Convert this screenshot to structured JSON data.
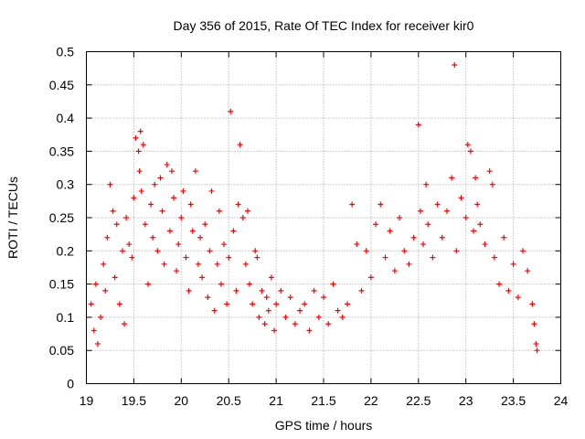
{
  "chart_data": {
    "type": "scatter",
    "title": "Day 356 of 2015, Rate Of TEC Index for receiver kir0",
    "xlabel": "GPS time / hours",
    "ylabel": "ROTI / TECUs",
    "xlim": [
      19,
      24
    ],
    "ylim": [
      0,
      0.5
    ],
    "grid": true,
    "marker": "+",
    "color": "#ff0000",
    "x_ticks": [
      "19",
      "19.5",
      "20",
      "20.5",
      "21",
      "21.5",
      "22",
      "22.5",
      "23",
      "23.5",
      "24"
    ],
    "x_tick_values": [
      19,
      19.5,
      20,
      20.5,
      21,
      21.5,
      22,
      22.5,
      23,
      23.5,
      24
    ],
    "y_ticks": [
      "0",
      "0.05",
      "0.1",
      "0.15",
      "0.2",
      "0.25",
      "0.3",
      "0.35",
      "0.4",
      "0.45",
      "0.5"
    ],
    "y_tick_values": [
      0,
      0.05,
      0.1,
      0.15,
      0.2,
      0.25,
      0.3,
      0.35,
      0.4,
      0.45,
      0.5
    ],
    "series": [
      {
        "name": "ROTI",
        "x": [
          19.05,
          19.08,
          19.1,
          19.12,
          19.15,
          19.18,
          19.2,
          19.22,
          19.25,
          19.28,
          19.3,
          19.32,
          19.35,
          19.38,
          19.4,
          19.42,
          19.45,
          19.48,
          19.5,
          19.52,
          19.55,
          19.56,
          19.57,
          19.58,
          19.6,
          19.62,
          19.65,
          19.68,
          19.7,
          19.72,
          19.75,
          19.78,
          19.8,
          19.82,
          19.85,
          19.88,
          19.9,
          19.92,
          19.95,
          19.97,
          20.0,
          20.02,
          20.05,
          20.08,
          20.1,
          20.12,
          20.15,
          20.18,
          20.2,
          20.22,
          20.25,
          20.28,
          20.3,
          20.32,
          20.35,
          20.38,
          20.4,
          20.42,
          20.45,
          20.48,
          20.5,
          20.52,
          20.55,
          20.58,
          20.6,
          20.62,
          20.65,
          20.68,
          20.7,
          20.72,
          20.75,
          20.78,
          20.8,
          20.82,
          20.85,
          20.88,
          20.9,
          20.92,
          20.95,
          20.98,
          21.0,
          21.05,
          21.1,
          21.15,
          21.2,
          21.25,
          21.3,
          21.35,
          21.4,
          21.45,
          21.5,
          21.55,
          21.6,
          21.65,
          21.7,
          21.75,
          21.8,
          21.85,
          21.9,
          21.95,
          22.0,
          22.05,
          22.1,
          22.15,
          22.2,
          22.25,
          22.3,
          22.35,
          22.4,
          22.45,
          22.5,
          22.52,
          22.55,
          22.58,
          22.6,
          22.65,
          22.7,
          22.75,
          22.8,
          22.85,
          22.88,
          22.9,
          22.95,
          23.0,
          23.02,
          23.05,
          23.08,
          23.1,
          23.12,
          23.15,
          23.2,
          23.25,
          23.28,
          23.3,
          23.35,
          23.4,
          23.45,
          23.5,
          23.55,
          23.6,
          23.65,
          23.7,
          23.72,
          23.74,
          23.75
        ],
        "y": [
          0.12,
          0.08,
          0.15,
          0.06,
          0.1,
          0.18,
          0.14,
          0.22,
          0.3,
          0.26,
          0.16,
          0.24,
          0.12,
          0.2,
          0.09,
          0.25,
          0.21,
          0.19,
          0.28,
          0.37,
          0.35,
          0.32,
          0.38,
          0.29,
          0.36,
          0.24,
          0.15,
          0.27,
          0.22,
          0.3,
          0.2,
          0.31,
          0.26,
          0.18,
          0.33,
          0.23,
          0.32,
          0.28,
          0.17,
          0.21,
          0.25,
          0.29,
          0.19,
          0.14,
          0.27,
          0.23,
          0.32,
          0.18,
          0.22,
          0.16,
          0.24,
          0.13,
          0.2,
          0.29,
          0.11,
          0.18,
          0.26,
          0.15,
          0.21,
          0.12,
          0.19,
          0.41,
          0.23,
          0.14,
          0.27,
          0.36,
          0.25,
          0.18,
          0.26,
          0.15,
          0.12,
          0.2,
          0.19,
          0.1,
          0.14,
          0.09,
          0.13,
          0.11,
          0.16,
          0.08,
          0.12,
          0.14,
          0.1,
          0.13,
          0.09,
          0.11,
          0.12,
          0.08,
          0.14,
          0.1,
          0.13,
          0.09,
          0.15,
          0.11,
          0.1,
          0.12,
          0.27,
          0.21,
          0.14,
          0.2,
          0.16,
          0.24,
          0.27,
          0.19,
          0.23,
          0.17,
          0.25,
          0.2,
          0.18,
          0.22,
          0.39,
          0.26,
          0.21,
          0.3,
          0.24,
          0.19,
          0.27,
          0.22,
          0.26,
          0.31,
          0.48,
          0.2,
          0.28,
          0.25,
          0.36,
          0.35,
          0.23,
          0.31,
          0.27,
          0.24,
          0.21,
          0.32,
          0.3,
          0.19,
          0.15,
          0.22,
          0.14,
          0.18,
          0.13,
          0.2,
          0.17,
          0.12,
          0.09,
          0.06,
          0.05
        ]
      }
    ]
  }
}
